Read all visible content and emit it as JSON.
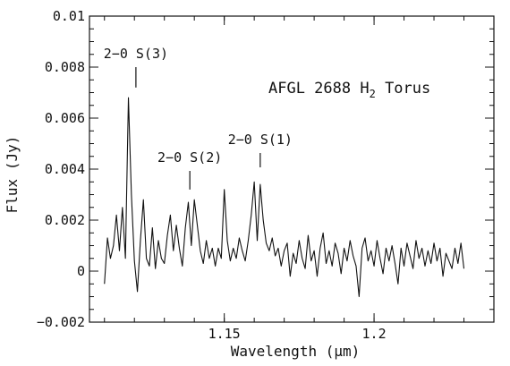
{
  "chart_data": {
    "type": "line",
    "title": "AFGL 2688 H",
    "title_subscript": "2",
    "title_suffix": " Torus",
    "xlabel": "Wavelength (μm)",
    "ylabel": "Flux (Jy)",
    "xlim": [
      1.105,
      1.24
    ],
    "ylim": [
      -0.002,
      0.01
    ],
    "x_ticks": [
      1.15,
      1.2
    ],
    "x_tick_labels": [
      "1.15",
      "1.2"
    ],
    "y_ticks": [
      -0.002,
      0,
      0.002,
      0.004,
      0.006,
      0.008,
      0.01
    ],
    "y_tick_labels": [
      "−0.002",
      "0",
      "0.002",
      "0.004",
      "0.006",
      "0.008",
      "0.01"
    ],
    "grid": false,
    "annotations": [
      {
        "label": "2−0 S(3)",
        "x": 1.1205,
        "y": 0.0072
      },
      {
        "label": "2−0 S(2)",
        "x": 1.1385,
        "y": 0.0032
      },
      {
        "label": "2−0 S(1)",
        "x": 1.162,
        "y": 0.0047
      }
    ],
    "series": [
      {
        "x": [
          1.11,
          1.111,
          1.112,
          1.113,
          1.114,
          1.115,
          1.116,
          1.117,
          1.118,
          1.119,
          1.12,
          1.121,
          1.122,
          1.123,
          1.124,
          1.125,
          1.126,
          1.127,
          1.128,
          1.129,
          1.13,
          1.131,
          1.132,
          1.133,
          1.134,
          1.135,
          1.136,
          1.137,
          1.138,
          1.139,
          1.14,
          1.141,
          1.142,
          1.143,
          1.144,
          1.145,
          1.146,
          1.147,
          1.148,
          1.149,
          1.15,
          1.151,
          1.152,
          1.153,
          1.154,
          1.155,
          1.156,
          1.157,
          1.158,
          1.159,
          1.16,
          1.161,
          1.162,
          1.163,
          1.164,
          1.165,
          1.166,
          1.167,
          1.168,
          1.169,
          1.17,
          1.171,
          1.172,
          1.173,
          1.174,
          1.175,
          1.176,
          1.177,
          1.178,
          1.179,
          1.18,
          1.181,
          1.182,
          1.183,
          1.184,
          1.185,
          1.186,
          1.187,
          1.188,
          1.189,
          1.19,
          1.191,
          1.192,
          1.193,
          1.194,
          1.195,
          1.196,
          1.197,
          1.198,
          1.199,
          1.2,
          1.201,
          1.202,
          1.203,
          1.204,
          1.205,
          1.206,
          1.207,
          1.208,
          1.209,
          1.21,
          1.211,
          1.212,
          1.213,
          1.214,
          1.215,
          1.216,
          1.217,
          1.218,
          1.219,
          1.22,
          1.221,
          1.222,
          1.223,
          1.224,
          1.225,
          1.226,
          1.227,
          1.228,
          1.229,
          1.23
        ],
        "y": [
          -0.0005,
          0.0013,
          0.0005,
          0.001,
          0.0022,
          0.0008,
          0.0025,
          0.0005,
          0.0068,
          0.003,
          0.0004,
          -0.0008,
          0.0012,
          0.0028,
          0.0005,
          0.0002,
          0.0017,
          0.0001,
          0.0012,
          0.0005,
          0.0003,
          0.0014,
          0.0022,
          0.0008,
          0.0018,
          0.0009,
          0.0002,
          0.0017,
          0.0027,
          0.001,
          0.0028,
          0.0018,
          0.0008,
          0.0003,
          0.0012,
          0.0005,
          0.0009,
          0.0002,
          0.0009,
          0.0005,
          0.0032,
          0.0012,
          0.0004,
          0.0009,
          0.0005,
          0.0013,
          0.0008,
          0.0004,
          0.0012,
          0.0022,
          0.0035,
          0.0012,
          0.0034,
          0.002,
          0.0011,
          0.0008,
          0.0013,
          0.0006,
          0.0009,
          0.0002,
          0.0008,
          0.0011,
          -0.0002,
          0.0007,
          0.0003,
          0.0012,
          0.0005,
          0.0001,
          0.0014,
          0.0004,
          0.0008,
          -0.0002,
          0.0009,
          0.0015,
          0.0003,
          0.0008,
          0.0002,
          0.0011,
          0.0007,
          -0.0001,
          0.0009,
          0.0004,
          0.0012,
          0.0006,
          0.0002,
          -0.001,
          0.0009,
          0.0013,
          0.0004,
          0.0008,
          0.0002,
          0.0012,
          0.0005,
          -0.0001,
          0.0009,
          0.0004,
          0.001,
          0.0003,
          -0.0005,
          0.0009,
          0.0002,
          0.0011,
          0.0006,
          0.0001,
          0.0012,
          0.0005,
          0.0009,
          0.0002,
          0.0008,
          0.0003,
          0.0011,
          0.0004,
          0.0009,
          -0.0002,
          0.0007,
          0.0004,
          0.0001,
          0.0009,
          0.0003,
          0.0011,
          0.0001
        ]
      }
    ]
  }
}
